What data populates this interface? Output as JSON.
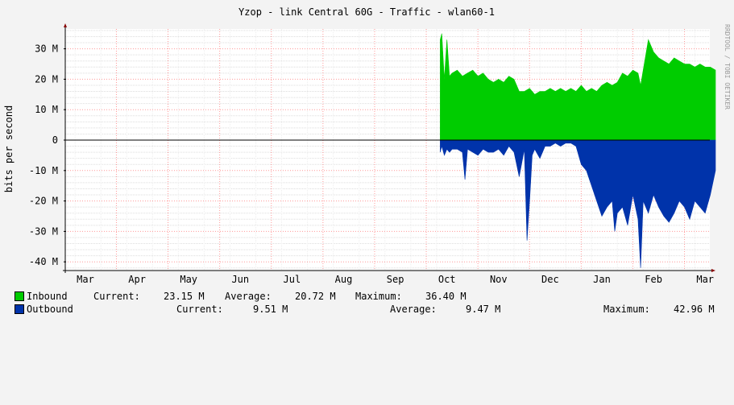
{
  "chart_data": {
    "type": "area",
    "title": "Yzop - link Central 60G - Traffic - wlan60-1",
    "ylabel": "bits per second",
    "side_label": "RRDTOOL / TOBI OETIKER",
    "ylim": [
      -43,
      37
    ],
    "yticks": [
      {
        "value": 30,
        "label": "30 M"
      },
      {
        "value": 20,
        "label": "20 M"
      },
      {
        "value": 10,
        "label": "10 M"
      },
      {
        "value": 0,
        "label": "0"
      },
      {
        "value": -10,
        "label": "-10 M"
      },
      {
        "value": -20,
        "label": "-20 M"
      },
      {
        "value": -30,
        "label": "-30 M"
      },
      {
        "value": -40,
        "label": "-40 M"
      }
    ],
    "xlim": [
      0,
      12.5
    ],
    "xticks": [
      {
        "value": 0,
        "label": "Mar"
      },
      {
        "value": 1,
        "label": "Apr"
      },
      {
        "value": 2,
        "label": "May"
      },
      {
        "value": 3,
        "label": "Jun"
      },
      {
        "value": 4,
        "label": "Jul"
      },
      {
        "value": 5,
        "label": "Aug"
      },
      {
        "value": 6,
        "label": "Sep"
      },
      {
        "value": 7,
        "label": "Oct"
      },
      {
        "value": 8,
        "label": "Nov"
      },
      {
        "value": 9,
        "label": "Dec"
      },
      {
        "value": 10,
        "label": "Jan"
      },
      {
        "value": 11,
        "label": "Feb"
      },
      {
        "value": 12,
        "label": "Mar"
      }
    ],
    "grid": true,
    "legend_position": "bottom",
    "series": [
      {
        "name": "Inbound",
        "color": "#00cc00",
        "x": [
          6.87,
          6.9,
          6.95,
          7.0,
          7.05,
          7.1,
          7.2,
          7.3,
          7.4,
          7.5,
          7.6,
          7.7,
          7.8,
          7.9,
          8.0,
          8.1,
          8.2,
          8.3,
          8.4,
          8.5,
          8.6,
          8.7,
          8.8,
          8.9,
          9.0,
          9.1,
          9.2,
          9.3,
          9.4,
          9.5,
          9.6,
          9.7,
          9.8,
          9.9,
          10.0,
          10.1,
          10.2,
          10.3,
          10.4,
          10.5,
          10.6,
          10.7,
          10.75,
          10.8,
          10.9,
          11.0,
          11.1,
          11.2,
          11.3,
          11.4,
          11.5,
          11.6,
          11.7,
          11.8,
          11.9,
          12.0,
          12.1,
          12.2
        ],
        "values": [
          33,
          35,
          20,
          33,
          21,
          22,
          23,
          21,
          22,
          23,
          21,
          22,
          20,
          19,
          20,
          19,
          21,
          20,
          16,
          16,
          17,
          15,
          16,
          16,
          17,
          16,
          17,
          16,
          17,
          16,
          18,
          16,
          17,
          16,
          18,
          19,
          18,
          19,
          22,
          21,
          23,
          22,
          18,
          23,
          33,
          29,
          27,
          26,
          25,
          27,
          26,
          25,
          25,
          24,
          25,
          24,
          24,
          23
        ]
      },
      {
        "name": "Outbound",
        "color": "#0033aa",
        "x": [
          6.87,
          6.9,
          6.95,
          7.0,
          7.05,
          7.1,
          7.2,
          7.3,
          7.35,
          7.4,
          7.5,
          7.6,
          7.7,
          7.8,
          7.9,
          8.0,
          8.1,
          8.2,
          8.3,
          8.4,
          8.5,
          8.55,
          8.6,
          8.65,
          8.7,
          8.8,
          8.9,
          9.0,
          9.1,
          9.2,
          9.3,
          9.4,
          9.5,
          9.6,
          9.7,
          9.8,
          9.9,
          10.0,
          10.1,
          10.2,
          10.25,
          10.3,
          10.4,
          10.5,
          10.6,
          10.7,
          10.75,
          10.8,
          10.9,
          11.0,
          11.1,
          11.2,
          11.3,
          11.4,
          11.5,
          11.6,
          11.7,
          11.8,
          11.9,
          12.0,
          12.1,
          12.2
        ],
        "values": [
          -4,
          -2,
          -5,
          -3,
          -4,
          -3,
          -3,
          -4,
          -13,
          -3,
          -4,
          -5,
          -3,
          -4,
          -4,
          -3,
          -5,
          -2,
          -4,
          -12,
          -3,
          -33,
          -20,
          -5,
          -3,
          -6,
          -2,
          -2,
          -1,
          -2,
          -1,
          -1,
          -2,
          -8,
          -10,
          -15,
          -20,
          -25,
          -22,
          -20,
          -30,
          -24,
          -22,
          -28,
          -18,
          -26,
          -42,
          -20,
          -24,
          -18,
          -22,
          -25,
          -27,
          -24,
          -20,
          -22,
          -26,
          -20,
          -22,
          -24,
          -18,
          -10
        ]
      }
    ]
  },
  "legend": {
    "inbound": {
      "label": "Inbound",
      "color": "#00cc00",
      "current_label": "Current:",
      "current": "23.15 M",
      "average_label": "Average:",
      "average": "20.72 M",
      "maximum_label": "Maximum:",
      "maximum": "36.40 M"
    },
    "outbound": {
      "label": "Outbound",
      "color": "#0033aa",
      "current_label": "Current:",
      "current": "9.51 M",
      "average_label": "Average:",
      "average": "9.47 M",
      "maximum_label": "Maximum:",
      "maximum": "42.96 M"
    }
  }
}
